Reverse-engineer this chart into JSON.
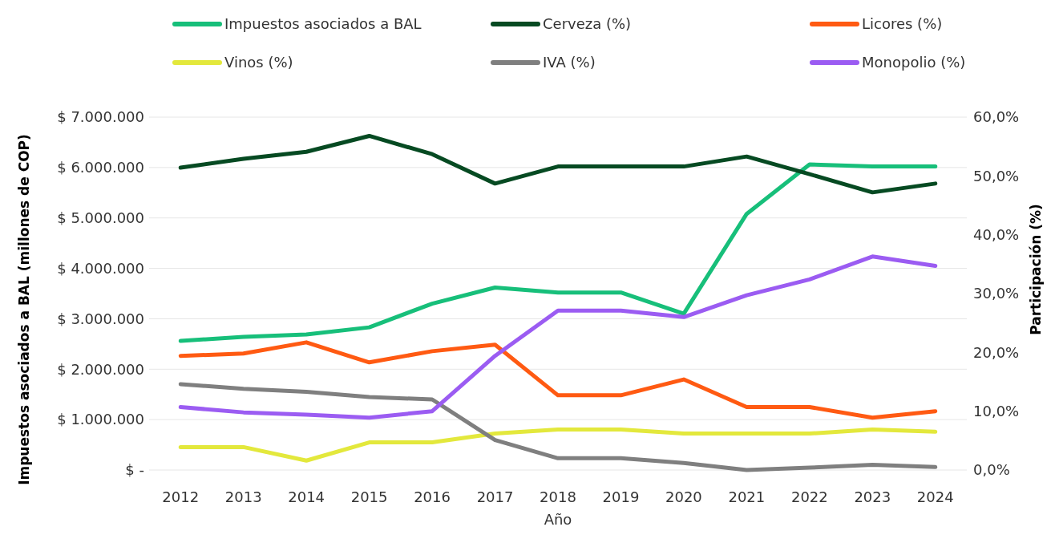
{
  "chart_data": {
    "type": "line",
    "xlabel": "Año",
    "ylabel": "Impuestos asociados a BAL (millones de COP)",
    "y2label": "Participación (%)",
    "categories": [
      "2012",
      "2013",
      "2014",
      "2015",
      "2016",
      "2017",
      "2018",
      "2019",
      "2020",
      "2021",
      "2022",
      "2023",
      "2024"
    ],
    "ylim": [
      0,
      7000000
    ],
    "yticks": [
      {
        "value": 0,
        "label": "$ -"
      },
      {
        "value": 1000000,
        "label": "$ 1.000.000"
      },
      {
        "value": 2000000,
        "label": "$ 2.000.000"
      },
      {
        "value": 3000000,
        "label": "$ 3.000.000"
      },
      {
        "value": 4000000,
        "label": "$ 4.000.000"
      },
      {
        "value": 5000000,
        "label": "$ 5.000.000"
      },
      {
        "value": 6000000,
        "label": "$ 6.000.000"
      },
      {
        "value": 7000000,
        "label": "$ 7.000.000"
      }
    ],
    "y2lim": [
      0,
      60
    ],
    "y2ticks": [
      {
        "value": 0,
        "label": "0,0%"
      },
      {
        "value": 10,
        "label": "10,0%"
      },
      {
        "value": 20,
        "label": "20,0%"
      },
      {
        "value": 30,
        "label": "30,0%"
      },
      {
        "value": 40,
        "label": "40,0%"
      },
      {
        "value": 50,
        "label": "50,0%"
      },
      {
        "value": 60,
        "label": "60,0%"
      }
    ],
    "grid": "y",
    "legend": "top",
    "marker": "none",
    "line_style": "solid",
    "series": [
      {
        "name": "Impuestos asociados a BAL",
        "color": "#17bf7a",
        "values": [
          2560000,
          2640000,
          2690000,
          2830000,
          3300000,
          3620000,
          3520000,
          3520000,
          3100000,
          5080000,
          6060000,
          6020000,
          6020000
        ]
      },
      {
        "name": "Cerveza (%)",
        "color": "#064a22",
        "axis": "y2",
        "values": [
          51.4,
          52.9,
          54.1,
          56.8,
          53.7,
          48.7,
          51.6,
          51.6,
          51.6,
          53.3,
          50.3,
          47.2,
          48.7
        ]
      },
      {
        "name": "Licores (%)",
        "color": "#ff5a12",
        "axis": "y2",
        "values": [
          19.4,
          19.8,
          21.7,
          18.3,
          20.2,
          21.3,
          12.7,
          12.7,
          15.4,
          10.7,
          10.7,
          8.9,
          10.0
        ]
      },
      {
        "name": "Vinos (%)",
        "color": "#e3e83c",
        "axis": "y2",
        "values": [
          3.9,
          3.9,
          1.6,
          4.7,
          4.7,
          6.2,
          6.9,
          6.9,
          6.2,
          6.2,
          6.2,
          6.9,
          6.5
        ]
      },
      {
        "name": "IVA (%)",
        "color": "#7f7f7f",
        "axis": "y2",
        "values": [
          14.6,
          13.8,
          13.3,
          12.4,
          12.0,
          5.1,
          2.0,
          2.0,
          1.2,
          0,
          0.4,
          0.9,
          0.5
        ]
      },
      {
        "name": "Monopolio (%)",
        "color": "#9b5cf2",
        "axis": "y2",
        "values": [
          10.7,
          9.8,
          9.4,
          8.9,
          10.0,
          19.4,
          27.1,
          27.1,
          26.0,
          29.7,
          32.4,
          36.3,
          34.7
        ]
      }
    ]
  }
}
